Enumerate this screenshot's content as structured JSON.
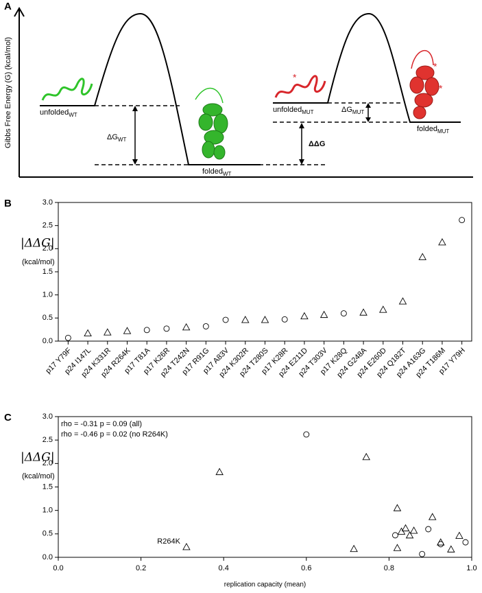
{
  "diagram": {
    "panel": "A",
    "ylabel": "Gibbs Free Energy (G) (kcal/mol)",
    "unfolded_wt": {
      "text": "unfolded",
      "sub": "WT"
    },
    "folded_wt": {
      "text": "folded",
      "sub": "WT"
    },
    "dg_wt": {
      "text": "ΔG",
      "sub": "WT"
    },
    "unfolded_mut": {
      "text": "unfolded",
      "sub": "MUT"
    },
    "folded_mut": {
      "text": "folded",
      "sub": "MUT"
    },
    "dg_mut": {
      "text": "ΔG",
      "sub": "MUT"
    },
    "ddg": "ΔΔG",
    "mutation_marks": [
      "*",
      "*",
      "*"
    ]
  },
  "chart_data": [
    {
      "type": "scatter",
      "panel": "B",
      "ylabel": "|ΔΔG|",
      "ylabel_unit": "(kcal/mol)",
      "categories": [
        "p17 Y79F",
        "p24 I147L",
        "p24 K331R",
        "p24 R264K",
        "p17 T81A",
        "p17 K26R",
        "p24 T242N",
        "p17 R91G",
        "p17 A83V",
        "p24 K302R",
        "p24 T280S",
        "p17 K28R",
        "p24 E211D",
        "p24 T303V",
        "p17 K28Q",
        "p24 G248A",
        "p24 E260D",
        "p24 Q182T",
        "p24 A163G",
        "p24 T186M",
        "p17 Y79H"
      ],
      "values": [
        0.07,
        0.17,
        0.19,
        0.22,
        0.24,
        0.27,
        0.3,
        0.32,
        0.46,
        0.46,
        0.46,
        0.47,
        0.54,
        0.57,
        0.6,
        0.62,
        0.68,
        0.86,
        1.82,
        2.14,
        2.62
      ],
      "markers": [
        "circle",
        "triangle",
        "triangle",
        "triangle",
        "circle",
        "circle",
        "triangle",
        "circle",
        "circle",
        "triangle",
        "triangle",
        "circle",
        "triangle",
        "triangle",
        "circle",
        "triangle",
        "triangle",
        "triangle",
        "triangle",
        "triangle",
        "circle"
      ],
      "ylim": [
        0,
        3
      ],
      "yticks": [
        {
          "value": 0,
          "label": "0.0"
        },
        {
          "value": 0.5,
          "label": "0.5"
        },
        {
          "value": 1,
          "label": "1.0"
        },
        {
          "value": 1.5,
          "label": "1.5"
        },
        {
          "value": 2,
          "label": "2.0"
        },
        {
          "value": 2.5,
          "label": "2.5"
        },
        {
          "value": 3,
          "label": "3.0"
        }
      ]
    },
    {
      "type": "scatter",
      "panel": "C",
      "ylabel": "|ΔΔG|",
      "ylabel_unit": "(kcal/mol)",
      "xlabel": "replication capacity (mean)",
      "annotations": [
        "rho = -0.31 p = 0.09 (all)",
        "rho = -0.46 p = 0.02 (no R264K)"
      ],
      "x": [
        0.31,
        0.39,
        0.6,
        0.715,
        0.745,
        0.815,
        0.82,
        0.82,
        0.83,
        0.84,
        0.85,
        0.86,
        0.88,
        0.895,
        0.905,
        0.925,
        0.925,
        0.95,
        0.97,
        0.985
      ],
      "values": [
        0.22,
        1.82,
        2.62,
        0.18,
        2.14,
        0.47,
        0.2,
        1.05,
        0.55,
        0.62,
        0.47,
        0.57,
        0.07,
        0.6,
        0.86,
        0.32,
        0.28,
        0.17,
        0.46,
        0.32
      ],
      "markers": [
        "triangle",
        "triangle",
        "circle",
        "triangle",
        "triangle",
        "circle",
        "triangle",
        "triangle",
        "triangle",
        "triangle",
        "triangle",
        "triangle",
        "circle",
        "circle",
        "triangle",
        "triangle",
        "circle",
        "triangle",
        "triangle",
        "circle"
      ],
      "point_labels": [
        "R264K",
        null,
        null,
        null,
        null,
        null,
        null,
        null,
        null,
        null,
        null,
        null,
        null,
        null,
        null,
        null,
        null,
        null,
        null,
        null
      ],
      "xlim": [
        0,
        1
      ],
      "xticks": [
        {
          "value": 0,
          "label": "0.0"
        },
        {
          "value": 0.2,
          "label": "0.2"
        },
        {
          "value": 0.4,
          "label": "0.4"
        },
        {
          "value": 0.6,
          "label": "0.6"
        },
        {
          "value": 0.8,
          "label": "0.8"
        },
        {
          "value": 1,
          "label": "1.0"
        }
      ],
      "ylim": [
        0,
        3
      ],
      "yticks": [
        {
          "value": 0,
          "label": "0.0"
        },
        {
          "value": 0.5,
          "label": "0.5"
        },
        {
          "value": 1,
          "label": "1.0"
        },
        {
          "value": 1.5,
          "label": "1.5"
        },
        {
          "value": 2,
          "label": "2.0"
        },
        {
          "value": 2.5,
          "label": "2.5"
        },
        {
          "value": 3,
          "label": "3.0"
        }
      ]
    }
  ]
}
